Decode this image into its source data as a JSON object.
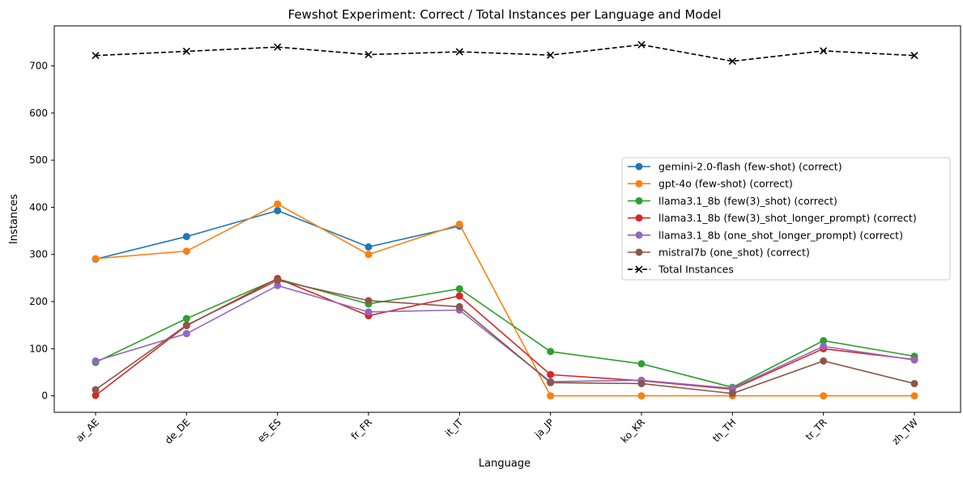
{
  "chart_data": {
    "type": "line",
    "title": "Fewshot Experiment: Correct / Total Instances per Language and Model",
    "xlabel": "Language",
    "ylabel": "Instances",
    "categories": [
      "ar_AE",
      "de_DE",
      "es_ES",
      "fr_FR",
      "it_IT",
      "ja_JP",
      "ko_KR",
      "th_TH",
      "tr_TR",
      "zh_TW"
    ],
    "ylim": [
      -35,
      785
    ],
    "yticks": [
      0,
      100,
      200,
      300,
      400,
      500,
      600,
      700
    ],
    "grid": false,
    "legend_position": "center-right",
    "series": [
      {
        "name": "gemini-2.0-flash (few-shot) (correct)",
        "color": "#1f77b4",
        "marker": "circle",
        "dashed": false,
        "values": [
          290,
          338,
          393,
          316,
          360,
          null,
          null,
          null,
          null,
          null
        ]
      },
      {
        "name": "gpt-4o (few-shot) (correct)",
        "color": "#ff7f0e",
        "marker": "circle",
        "dashed": false,
        "values": [
          291,
          307,
          407,
          300,
          364,
          0,
          0,
          0,
          0,
          0
        ]
      },
      {
        "name": "llama3.1_8b (few(3)_shot) (correct)",
        "color": "#2ca02c",
        "marker": "circle",
        "dashed": false,
        "values": [
          71,
          164,
          248,
          195,
          227,
          94,
          68,
          18,
          117,
          84
        ]
      },
      {
        "name": "llama3.1_8b (few(3)_shot_longer_prompt) (correct)",
        "color": "#d62728",
        "marker": "circle",
        "dashed": false,
        "values": [
          1,
          149,
          249,
          170,
          212,
          45,
          32,
          14,
          100,
          77
        ]
      },
      {
        "name": "llama3.1_8b (one_shot_longer_prompt) (correct)",
        "color": "#9467bd",
        "marker": "circle",
        "dashed": false,
        "values": [
          74,
          132,
          234,
          178,
          182,
          30,
          33,
          16,
          105,
          76
        ]
      },
      {
        "name": "mistral7b (one_shot) (correct)",
        "color": "#8c564b",
        "marker": "circle",
        "dashed": false,
        "values": [
          13,
          150,
          245,
          202,
          189,
          28,
          26,
          5,
          74,
          26
        ]
      },
      {
        "name": "Total Instances",
        "color": "#000000",
        "marker": "x",
        "dashed": true,
        "values": [
          722,
          731,
          740,
          724,
          730,
          723,
          745,
          710,
          732,
          722
        ]
      }
    ]
  }
}
